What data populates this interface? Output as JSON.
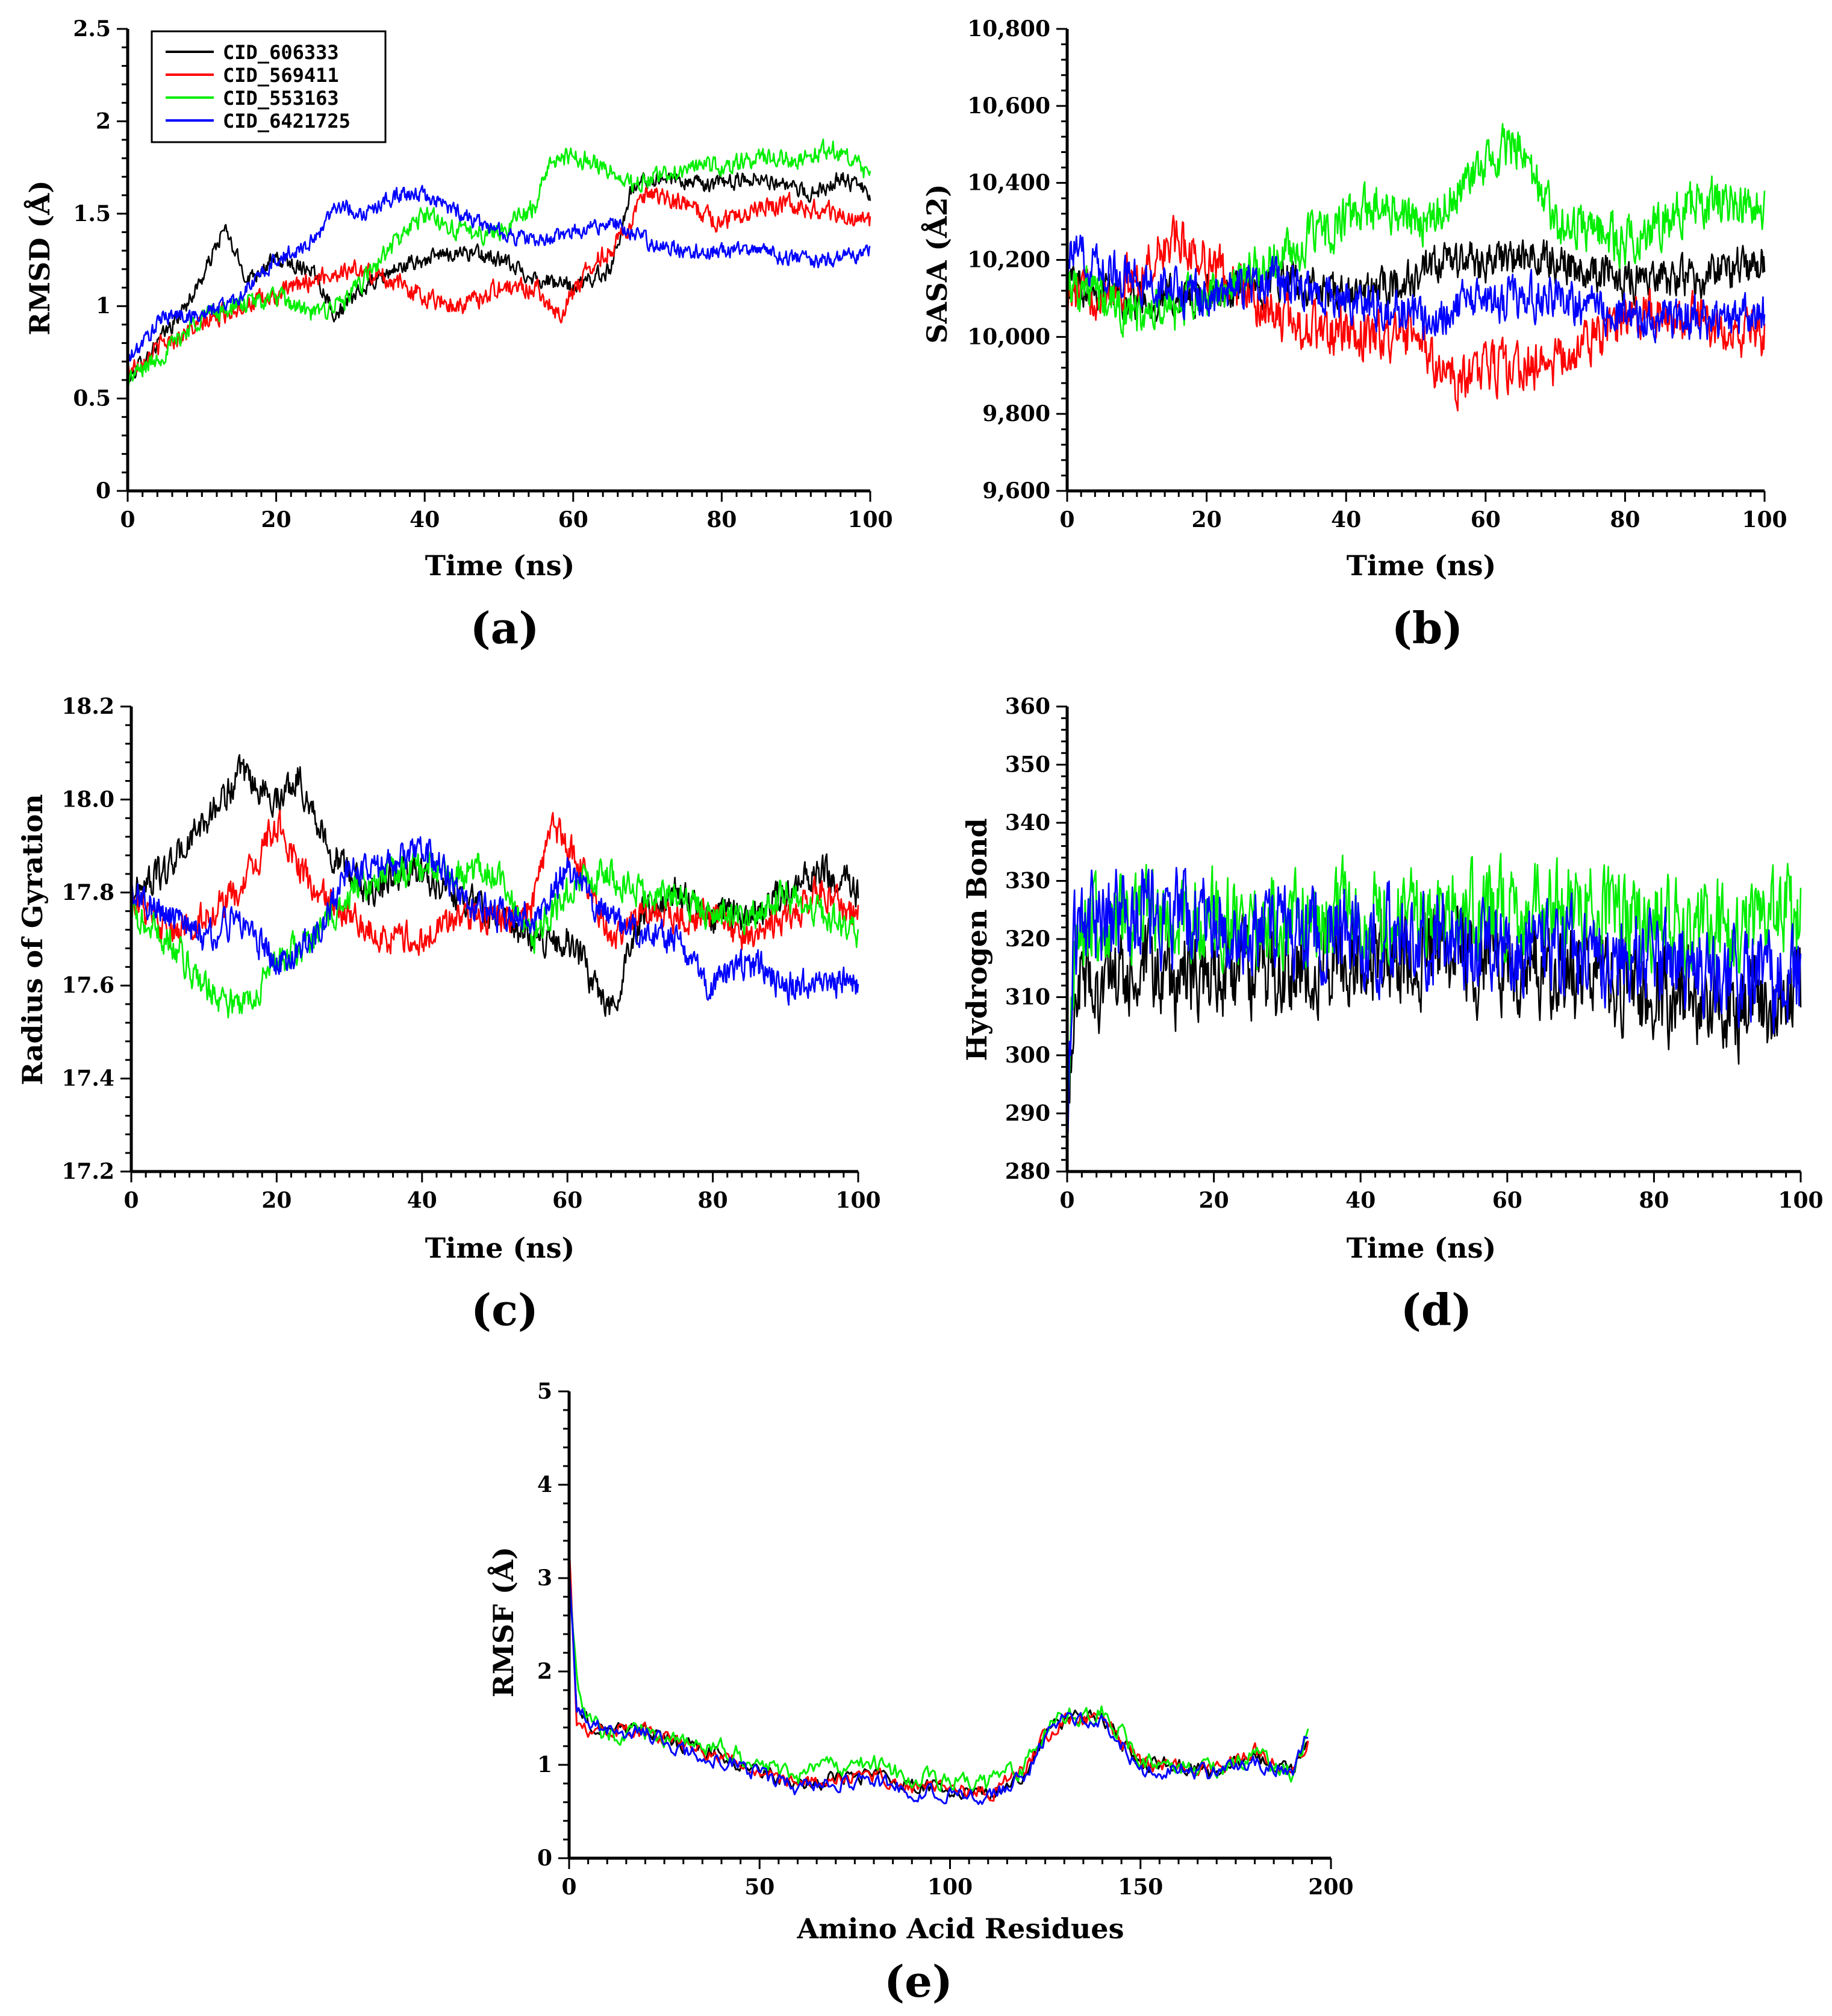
{
  "colors": {
    "CID_606333": "#000000",
    "CID_569411": "#ff0000",
    "CID_553163": "#00ee00",
    "CID_6421725": "#0000ff"
  },
  "legend": {
    "entries": [
      "CID_606333",
      "CID_569411",
      "CID_553163",
      "CID_6421725"
    ]
  },
  "chart_data": [
    {
      "id": "a",
      "panel_label": "(a)",
      "type": "line",
      "xlabel": "Time (ns)",
      "ylabel": "RMSD (Å)",
      "xlim": [
        0,
        100
      ],
      "ylim": [
        0,
        2.5
      ],
      "xticks": [
        0,
        20,
        40,
        60,
        80,
        100
      ],
      "xtick_labels": [
        "0",
        "20",
        "40",
        "60",
        "80",
        "100"
      ],
      "yticks": [
        0,
        0.5,
        1,
        1.5,
        2,
        2.5
      ],
      "ytick_labels": [
        "0",
        "0.5",
        "1",
        "1.5",
        "2",
        "2.5"
      ],
      "series": [
        {
          "name": "CID_606333",
          "noise": 0.05,
          "x": [
            0,
            3,
            7,
            10,
            13,
            16,
            20,
            25,
            28,
            32,
            36,
            40,
            45,
            50,
            55,
            60,
            65,
            68,
            72,
            78,
            85,
            92,
            96,
            100
          ],
          "values": [
            0.6,
            0.75,
            0.95,
            1.15,
            1.42,
            1.15,
            1.25,
            1.2,
            0.95,
            1.1,
            1.2,
            1.25,
            1.3,
            1.25,
            1.15,
            1.1,
            1.2,
            1.65,
            1.7,
            1.65,
            1.7,
            1.6,
            1.7,
            1.6
          ]
        },
        {
          "name": "CID_569411",
          "noise": 0.06,
          "x": [
            0,
            5,
            10,
            15,
            20,
            25,
            30,
            35,
            40,
            45,
            50,
            55,
            58,
            62,
            66,
            70,
            75,
            80,
            85,
            90,
            95,
            100
          ],
          "values": [
            0.65,
            0.8,
            0.9,
            1.0,
            1.05,
            1.15,
            1.2,
            1.15,
            1.05,
            1.0,
            1.1,
            1.1,
            0.95,
            1.2,
            1.35,
            1.6,
            1.55,
            1.45,
            1.55,
            1.55,
            1.5,
            1.45
          ]
        },
        {
          "name": "CID_553163",
          "noise": 0.06,
          "x": [
            0,
            5,
            10,
            15,
            20,
            25,
            30,
            35,
            40,
            45,
            50,
            55,
            57,
            62,
            68,
            75,
            80,
            85,
            90,
            95,
            100
          ],
          "values": [
            0.6,
            0.75,
            0.95,
            1.0,
            1.05,
            0.95,
            1.05,
            1.3,
            1.5,
            1.4,
            1.4,
            1.55,
            1.8,
            1.8,
            1.65,
            1.75,
            1.75,
            1.8,
            1.8,
            1.85,
            1.7
          ]
        },
        {
          "name": "CID_6421725",
          "noise": 0.05,
          "x": [
            0,
            5,
            10,
            15,
            20,
            25,
            28,
            32,
            36,
            40,
            45,
            50,
            55,
            60,
            65,
            70,
            75,
            80,
            85,
            90,
            95,
            100
          ],
          "values": [
            0.7,
            0.95,
            0.95,
            1.05,
            1.25,
            1.35,
            1.55,
            1.5,
            1.6,
            1.6,
            1.5,
            1.4,
            1.35,
            1.4,
            1.45,
            1.35,
            1.3,
            1.3,
            1.3,
            1.25,
            1.25,
            1.3
          ]
        }
      ]
    },
    {
      "id": "b",
      "panel_label": "(b)",
      "type": "line",
      "xlabel": "Time (ns)",
      "ylabel": "SASA (Å2)",
      "xlim": [
        0,
        100
      ],
      "ylim": [
        9600,
        10800
      ],
      "xticks": [
        0,
        20,
        40,
        60,
        80,
        100
      ],
      "xtick_labels": [
        "0",
        "20",
        "40",
        "60",
        "80",
        "100"
      ],
      "yticks": [
        9600,
        9800,
        10000,
        10200,
        10400,
        10600,
        10800
      ],
      "ytick_labels": [
        "9,600",
        "9,800",
        "10,000",
        "10,200",
        "10,400",
        "10,600",
        "10,800"
      ],
      "series": [
        {
          "name": "CID_606333",
          "noise": 60,
          "x": [
            0,
            10,
            20,
            30,
            40,
            50,
            55,
            60,
            70,
            80,
            90,
            100
          ],
          "values": [
            10150,
            10100,
            10100,
            10150,
            10100,
            10150,
            10200,
            10200,
            10200,
            10150,
            10150,
            10200
          ]
        },
        {
          "name": "CID_569411",
          "noise": 70,
          "x": [
            0,
            10,
            15,
            20,
            30,
            40,
            50,
            55,
            60,
            70,
            80,
            90,
            100
          ],
          "values": [
            10100,
            10150,
            10250,
            10200,
            10050,
            10000,
            10000,
            9880,
            9920,
            9930,
            10050,
            10050,
            10000
          ]
        },
        {
          "name": "CID_553163",
          "noise": 70,
          "x": [
            0,
            10,
            20,
            30,
            40,
            45,
            50,
            55,
            60,
            64,
            70,
            80,
            90,
            100
          ],
          "values": [
            10150,
            10050,
            10100,
            10200,
            10300,
            10350,
            10300,
            10350,
            10450,
            10500,
            10300,
            10250,
            10350,
            10350
          ]
        },
        {
          "name": "CID_6421725",
          "noise": 65,
          "x": [
            0,
            10,
            20,
            30,
            40,
            50,
            60,
            70,
            80,
            90,
            100
          ],
          "values": [
            10220,
            10150,
            10100,
            10150,
            10100,
            10050,
            10100,
            10100,
            10050,
            10050,
            10050
          ]
        }
      ]
    },
    {
      "id": "c",
      "panel_label": "(c)",
      "type": "line",
      "xlabel": "Time (ns)",
      "ylabel": "Radius of Gyration",
      "xlim": [
        0,
        100
      ],
      "ylim": [
        17.2,
        18.2
      ],
      "xticks": [
        0,
        20,
        40,
        60,
        80,
        100
      ],
      "xtick_labels": [
        "0",
        "20",
        "40",
        "60",
        "80",
        "100"
      ],
      "yticks": [
        17.2,
        17.4,
        17.6,
        17.8,
        18.0,
        18.2
      ],
      "ytick_labels": [
        "17.2",
        "17.4",
        "17.6",
        "17.8",
        "18.0",
        "18.2"
      ],
      "series": [
        {
          "name": "CID_606333",
          "noise": 0.04,
          "x": [
            0,
            5,
            10,
            15,
            20,
            23,
            27,
            32,
            38,
            45,
            50,
            55,
            60,
            66,
            70,
            75,
            80,
            85,
            90,
            95,
            100
          ],
          "values": [
            17.8,
            17.85,
            17.95,
            18.05,
            18.0,
            18.05,
            17.9,
            17.8,
            17.85,
            17.8,
            17.75,
            17.7,
            17.7,
            17.55,
            17.75,
            17.8,
            17.75,
            17.75,
            17.8,
            17.85,
            17.8
          ]
        },
        {
          "name": "CID_569411",
          "noise": 0.04,
          "x": [
            0,
            5,
            10,
            15,
            20,
            25,
            30,
            35,
            40,
            45,
            50,
            55,
            58,
            62,
            66,
            70,
            75,
            80,
            85,
            90,
            95,
            100
          ],
          "values": [
            17.8,
            17.7,
            17.75,
            17.8,
            17.95,
            17.8,
            17.75,
            17.7,
            17.7,
            17.75,
            17.75,
            17.75,
            17.95,
            17.85,
            17.7,
            17.75,
            17.75,
            17.75,
            17.7,
            17.75,
            17.8,
            17.75
          ]
        },
        {
          "name": "CID_553163",
          "noise": 0.04,
          "x": [
            0,
            5,
            10,
            15,
            20,
            25,
            30,
            35,
            40,
            45,
            50,
            55,
            60,
            65,
            70,
            75,
            80,
            85,
            90,
            95,
            100
          ],
          "values": [
            17.75,
            17.7,
            17.6,
            17.55,
            17.65,
            17.7,
            17.8,
            17.85,
            17.85,
            17.85,
            17.85,
            17.7,
            17.8,
            17.85,
            17.8,
            17.8,
            17.75,
            17.75,
            17.8,
            17.75,
            17.7
          ]
        },
        {
          "name": "CID_6421725",
          "noise": 0.04,
          "x": [
            0,
            5,
            10,
            15,
            20,
            25,
            30,
            35,
            40,
            45,
            50,
            55,
            60,
            65,
            70,
            75,
            80,
            85,
            90,
            95,
            100
          ],
          "values": [
            17.8,
            17.75,
            17.7,
            17.75,
            17.65,
            17.7,
            17.85,
            17.85,
            17.9,
            17.8,
            17.75,
            17.75,
            17.85,
            17.75,
            17.7,
            17.7,
            17.6,
            17.65,
            17.6,
            17.6,
            17.6
          ]
        }
      ]
    },
    {
      "id": "d",
      "panel_label": "(d)",
      "type": "line",
      "xlabel": "Time (ns)",
      "ylabel": "Hydrogen Bond",
      "xlim": [
        0,
        100
      ],
      "ylim": [
        280,
        360
      ],
      "xticks": [
        0,
        20,
        40,
        60,
        80,
        100
      ],
      "xtick_labels": [
        "0",
        "20",
        "40",
        "60",
        "80",
        "100"
      ],
      "yticks": [
        280,
        290,
        300,
        310,
        320,
        330,
        340,
        350,
        360
      ],
      "ytick_labels": [
        "280",
        "290",
        "300",
        "310",
        "320",
        "330",
        "340",
        "350",
        "360"
      ],
      "series": [
        {
          "name": "CID_606333",
          "noise": 9,
          "x": [
            0,
            1,
            10,
            30,
            50,
            70,
            90,
            100
          ],
          "values": [
            285,
            312,
            313,
            315,
            318,
            314,
            308,
            310
          ]
        },
        {
          "name": "CID_553163",
          "noise": 9,
          "x": [
            0,
            1,
            10,
            30,
            50,
            70,
            90,
            100
          ],
          "values": [
            285,
            322,
            323,
            324,
            324,
            325,
            322,
            324
          ]
        },
        {
          "name": "CID_6421725",
          "noise": 9,
          "x": [
            0,
            1,
            10,
            30,
            50,
            70,
            90,
            100
          ],
          "values": [
            285,
            322,
            324,
            322,
            320,
            318,
            314,
            312
          ]
        }
      ]
    },
    {
      "id": "e",
      "panel_label": "(e)",
      "type": "line",
      "xlabel": "Amino Acid Residues",
      "ylabel": "RMSF (Å)",
      "xlim": [
        0,
        200
      ],
      "ylim": [
        0,
        5
      ],
      "xticks": [
        0,
        50,
        100,
        150,
        200
      ],
      "xtick_labels": [
        "0",
        "50",
        "100",
        "150",
        "200"
      ],
      "yticks": [
        0,
        1,
        2,
        3,
        4,
        5
      ],
      "ytick_labels": [
        "0",
        "1",
        "2",
        "3",
        "4",
        "5"
      ],
      "series": [
        {
          "name": "CID_606333",
          "noise": 0.1,
          "x": [
            0,
            2,
            5,
            10,
            20,
            30,
            40,
            50,
            60,
            70,
            80,
            90,
            100,
            110,
            120,
            125,
            130,
            140,
            150,
            160,
            170,
            180,
            190,
            194
          ],
          "values": [
            3.3,
            1.6,
            1.45,
            1.4,
            1.4,
            1.2,
            1.1,
            0.9,
            0.8,
            0.85,
            0.9,
            0.75,
            0.75,
            0.7,
            0.9,
            1.3,
            1.5,
            1.5,
            1.0,
            1.0,
            0.9,
            1.1,
            0.9,
            1.3
          ]
        },
        {
          "name": "CID_569411",
          "noise": 0.1,
          "x": [
            0,
            2,
            5,
            10,
            20,
            30,
            40,
            50,
            60,
            70,
            80,
            90,
            100,
            110,
            120,
            125,
            130,
            140,
            150,
            160,
            170,
            180,
            190,
            194
          ],
          "values": [
            3.4,
            1.5,
            1.4,
            1.4,
            1.35,
            1.2,
            1.1,
            0.9,
            0.8,
            0.85,
            0.9,
            0.75,
            0.75,
            0.7,
            0.95,
            1.3,
            1.45,
            1.5,
            1.0,
            1.0,
            0.95,
            1.15,
            0.9,
            1.3
          ]
        },
        {
          "name": "CID_553163",
          "noise": 0.12,
          "x": [
            0,
            2,
            5,
            10,
            20,
            30,
            40,
            50,
            60,
            70,
            80,
            90,
            100,
            110,
            120,
            125,
            130,
            140,
            150,
            160,
            170,
            180,
            190,
            194
          ],
          "values": [
            3.0,
            1.9,
            1.5,
            1.3,
            1.35,
            1.2,
            1.2,
            1.0,
            0.9,
            1.0,
            1.0,
            0.85,
            0.85,
            0.8,
            1.0,
            1.35,
            1.5,
            1.6,
            1.05,
            1.0,
            0.95,
            1.1,
            0.9,
            1.3
          ]
        },
        {
          "name": "CID_6421725",
          "noise": 0.1,
          "x": [
            0,
            2,
            5,
            10,
            20,
            30,
            40,
            50,
            60,
            70,
            80,
            90,
            100,
            110,
            120,
            125,
            130,
            140,
            150,
            160,
            170,
            180,
            190,
            194
          ],
          "values": [
            3.2,
            1.6,
            1.45,
            1.35,
            1.35,
            1.15,
            1.05,
            0.9,
            0.75,
            0.8,
            0.85,
            0.7,
            0.7,
            0.65,
            0.9,
            1.3,
            1.5,
            1.45,
            0.95,
            0.95,
            0.9,
            1.05,
            0.9,
            1.35
          ]
        }
      ]
    }
  ]
}
